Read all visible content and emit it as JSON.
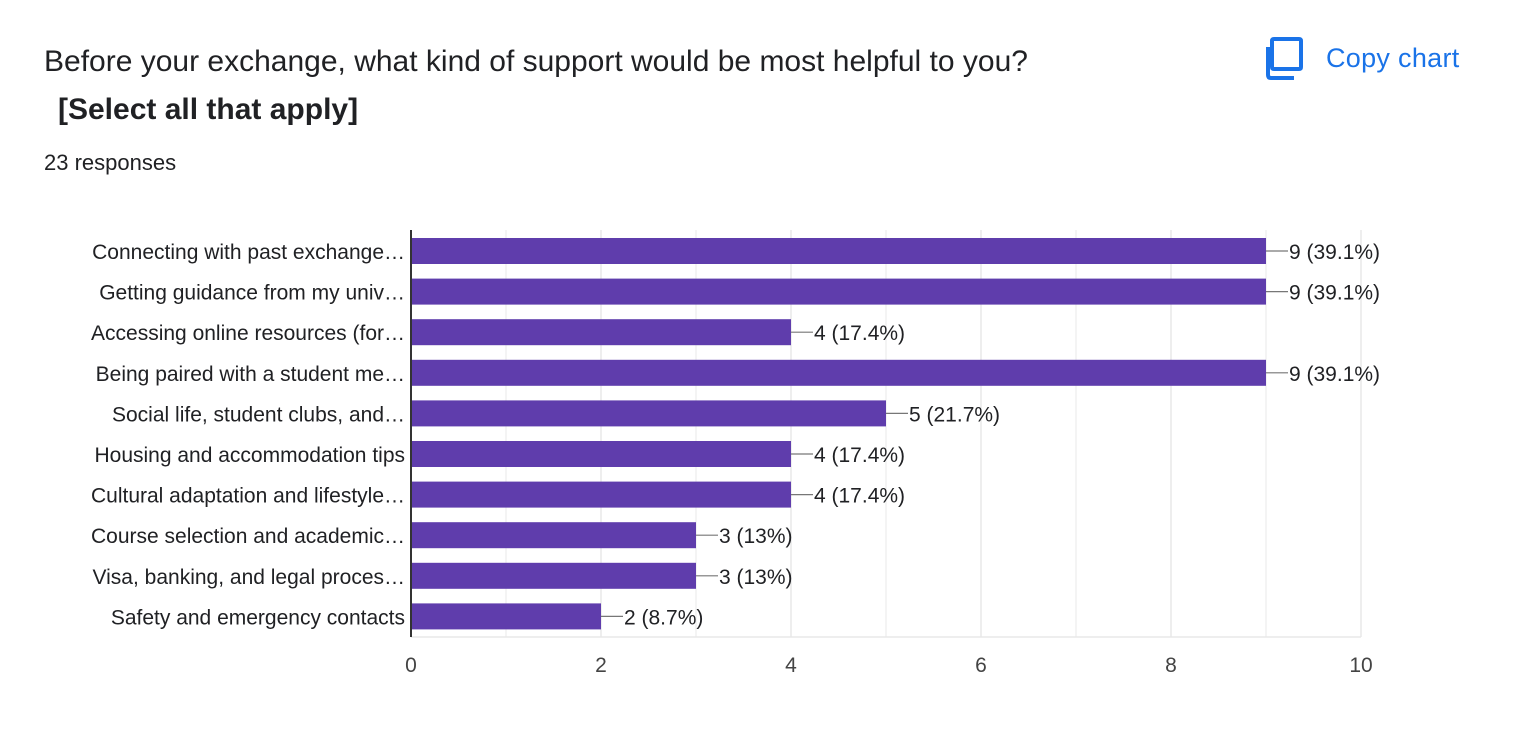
{
  "question": {
    "text": "Before your exchange, what kind of support would be most helpful to you?",
    "emphasis": "[Select all that apply]"
  },
  "responses_label": "23 responses",
  "copy_chart": {
    "label": "Copy chart",
    "icon": "copy-icon"
  },
  "colors": {
    "bar": "#5f3dac",
    "accent": "#1a73e8",
    "grid": "#e8e8e8",
    "axis": "#333333",
    "text": "#202124"
  },
  "chart_data": {
    "type": "bar",
    "orientation": "horizontal",
    "categories": [
      "Connecting with past exchange…",
      "Getting guidance from my univ…",
      "Accessing online resources (for…",
      "Being paired with a student me…",
      "Social life, student clubs, and…",
      "Housing and accommodation tips",
      "Cultural adaptation and lifestyle…",
      "Course selection and academic…",
      "Visa, banking, and legal proces…",
      "Safety and emergency contacts"
    ],
    "values": [
      9,
      9,
      4,
      9,
      5,
      4,
      4,
      3,
      3,
      2
    ],
    "data_labels": [
      "9 (39.1%)",
      "9 (39.1%)",
      "4 (17.4%)",
      "9 (39.1%)",
      "5 (21.7%)",
      "4 (17.4%)",
      "4 (17.4%)",
      "3 (13%)",
      "3 (13%)",
      "2 (8.7%)"
    ],
    "xlim": [
      0,
      10
    ],
    "xticks": [
      0,
      2,
      4,
      6,
      8,
      10
    ],
    "minor_ticks": [
      1,
      3,
      5,
      7,
      9
    ],
    "grid": true,
    "title": "",
    "xlabel": "",
    "ylabel": ""
  }
}
